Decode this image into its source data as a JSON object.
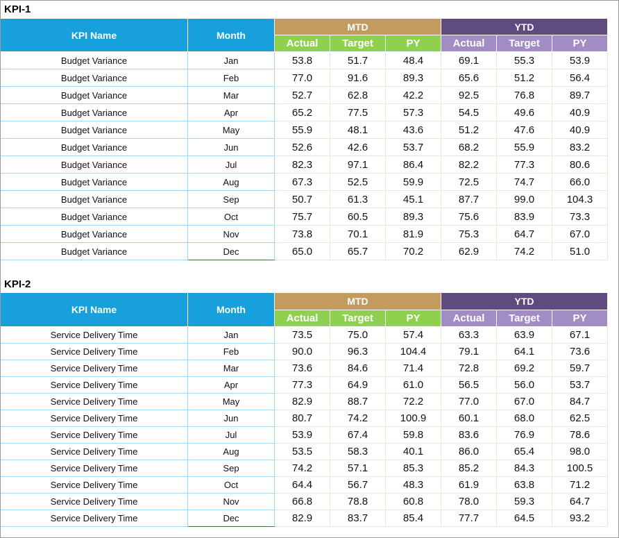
{
  "tables": [
    {
      "title": "KPI-1",
      "header": {
        "kpi_name": "KPI Name",
        "month": "Month",
        "mtd": "MTD",
        "ytd": "YTD",
        "mtd_columns": [
          "Actual",
          "Target",
          "PY"
        ],
        "ytd_columns": [
          "Actual",
          "Target",
          "PY"
        ]
      },
      "rows": [
        {
          "kpi": "Budget Variance",
          "month": "Jan",
          "mtd": [
            "53.8",
            "51.7",
            "48.4"
          ],
          "ytd": [
            "69.1",
            "55.3",
            "53.9"
          ]
        },
        {
          "kpi": "Budget Variance",
          "month": "Feb",
          "mtd": [
            "77.0",
            "91.6",
            "89.3"
          ],
          "ytd": [
            "65.6",
            "51.2",
            "56.4"
          ]
        },
        {
          "kpi": "Budget Variance",
          "month": "Mar",
          "mtd": [
            "52.7",
            "62.8",
            "42.2"
          ],
          "ytd": [
            "92.5",
            "76.8",
            "89.7"
          ]
        },
        {
          "kpi": "Budget Variance",
          "month": "Apr",
          "mtd": [
            "65.2",
            "77.5",
            "57.3"
          ],
          "ytd": [
            "54.5",
            "49.6",
            "40.9"
          ]
        },
        {
          "kpi": "Budget Variance",
          "month": "May",
          "mtd": [
            "55.9",
            "48.1",
            "43.6"
          ],
          "ytd": [
            "51.2",
            "47.6",
            "40.9"
          ]
        },
        {
          "kpi": "Budget Variance",
          "month": "Jun",
          "mtd": [
            "52.6",
            "42.6",
            "53.7"
          ],
          "ytd": [
            "68.2",
            "55.9",
            "83.2"
          ]
        },
        {
          "kpi": "Budget Variance",
          "month": "Jul",
          "mtd": [
            "82.3",
            "97.1",
            "86.4"
          ],
          "ytd": [
            "82.2",
            "77.3",
            "80.6"
          ]
        },
        {
          "kpi": "Budget Variance",
          "month": "Aug",
          "mtd": [
            "67.3",
            "52.5",
            "59.9"
          ],
          "ytd": [
            "72.5",
            "74.7",
            "66.0"
          ]
        },
        {
          "kpi": "Budget Variance",
          "month": "Sep",
          "mtd": [
            "50.7",
            "61.3",
            "45.1"
          ],
          "ytd": [
            "87.7",
            "99.0",
            "104.3"
          ]
        },
        {
          "kpi": "Budget Variance",
          "month": "Oct",
          "mtd": [
            "75.7",
            "60.5",
            "89.3"
          ],
          "ytd": [
            "75.6",
            "83.9",
            "73.3"
          ]
        },
        {
          "kpi": "Budget Variance",
          "month": "Nov",
          "mtd": [
            "73.8",
            "70.1",
            "81.9"
          ],
          "ytd": [
            "75.3",
            "64.7",
            "67.0"
          ]
        },
        {
          "kpi": "Budget Variance",
          "month": "Dec",
          "mtd": [
            "65.0",
            "65.7",
            "70.2"
          ],
          "ytd": [
            "62.9",
            "74.2",
            "51.0"
          ]
        }
      ]
    },
    {
      "title": "KPI-2",
      "header": {
        "kpi_name": "KPI Name",
        "month": "Month",
        "mtd": "MTD",
        "ytd": "YTD",
        "mtd_columns": [
          "Actual",
          "Target",
          "PY"
        ],
        "ytd_columns": [
          "Actual",
          "Target",
          "PY"
        ]
      },
      "rows": [
        {
          "kpi": "Service Delivery Time",
          "month": "Jan",
          "mtd": [
            "73.5",
            "75.0",
            "57.4"
          ],
          "ytd": [
            "63.3",
            "63.9",
            "67.1"
          ]
        },
        {
          "kpi": "Service Delivery Time",
          "month": "Feb",
          "mtd": [
            "90.0",
            "96.3",
            "104.4"
          ],
          "ytd": [
            "79.1",
            "64.1",
            "73.6"
          ]
        },
        {
          "kpi": "Service Delivery Time",
          "month": "Mar",
          "mtd": [
            "73.6",
            "84.6",
            "71.4"
          ],
          "ytd": [
            "72.8",
            "69.2",
            "59.7"
          ]
        },
        {
          "kpi": "Service Delivery Time",
          "month": "Apr",
          "mtd": [
            "77.3",
            "64.9",
            "61.0"
          ],
          "ytd": [
            "56.5",
            "56.0",
            "53.7"
          ]
        },
        {
          "kpi": "Service Delivery Time",
          "month": "May",
          "mtd": [
            "82.9",
            "88.7",
            "72.2"
          ],
          "ytd": [
            "77.0",
            "67.0",
            "84.7"
          ]
        },
        {
          "kpi": "Service Delivery Time",
          "month": "Jun",
          "mtd": [
            "80.7",
            "74.2",
            "100.9"
          ],
          "ytd": [
            "60.1",
            "68.0",
            "62.5"
          ]
        },
        {
          "kpi": "Service Delivery Time",
          "month": "Jul",
          "mtd": [
            "53.9",
            "67.4",
            "59.8"
          ],
          "ytd": [
            "83.6",
            "76.9",
            "78.6"
          ]
        },
        {
          "kpi": "Service Delivery Time",
          "month": "Aug",
          "mtd": [
            "53.5",
            "58.3",
            "40.1"
          ],
          "ytd": [
            "86.0",
            "65.4",
            "98.0"
          ]
        },
        {
          "kpi": "Service Delivery Time",
          "month": "Sep",
          "mtd": [
            "74.2",
            "57.1",
            "85.3"
          ],
          "ytd": [
            "85.2",
            "84.3",
            "100.5"
          ]
        },
        {
          "kpi": "Service Delivery Time",
          "month": "Oct",
          "mtd": [
            "64.4",
            "56.7",
            "48.3"
          ],
          "ytd": [
            "61.9",
            "63.8",
            "71.2"
          ]
        },
        {
          "kpi": "Service Delivery Time",
          "month": "Nov",
          "mtd": [
            "66.8",
            "78.8",
            "60.8"
          ],
          "ytd": [
            "78.0",
            "59.3",
            "64.7"
          ]
        },
        {
          "kpi": "Service Delivery Time",
          "month": "Dec",
          "mtd": [
            "82.9",
            "83.7",
            "85.4"
          ],
          "ytd": [
            "77.7",
            "64.5",
            "93.2"
          ]
        }
      ]
    }
  ]
}
